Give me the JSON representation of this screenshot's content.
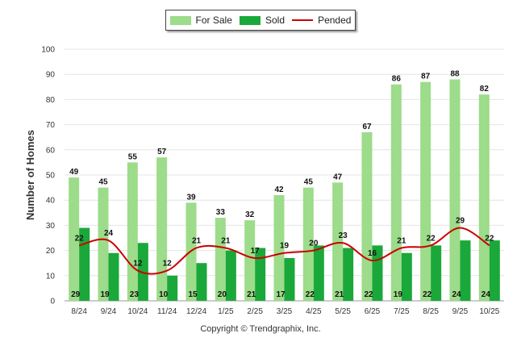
{
  "chart_data": {
    "type": "bar",
    "title": "",
    "xlabel": "",
    "ylabel": "Number of Homes",
    "ylim": [
      0,
      100
    ],
    "yticks": [
      0,
      10,
      20,
      30,
      40,
      50,
      60,
      70,
      80,
      90,
      100
    ],
    "categories": [
      "8/24",
      "9/24",
      "10/24",
      "11/24",
      "12/24",
      "1/25",
      "2/25",
      "3/25",
      "4/25",
      "5/25",
      "6/25",
      "7/25",
      "8/25",
      "9/25",
      "10/25"
    ],
    "series": [
      {
        "name": "For Sale",
        "type": "bar",
        "color": "#9ddc8a",
        "values": [
          49,
          45,
          55,
          57,
          39,
          33,
          32,
          42,
          45,
          47,
          67,
          86,
          87,
          88,
          82
        ]
      },
      {
        "name": "Sold",
        "type": "bar",
        "color": "#1aa83a",
        "values": [
          29,
          19,
          23,
          10,
          15,
          20,
          21,
          17,
          22,
          21,
          22,
          19,
          22,
          24,
          24
        ]
      },
      {
        "name": "Pended",
        "type": "line",
        "color": "#cc0000",
        "values": [
          22,
          24,
          12,
          12,
          21,
          21,
          17,
          19,
          20,
          23,
          16,
          21,
          22,
          29,
          22
        ]
      }
    ],
    "legend": "top-center",
    "grid": true
  },
  "footer": {
    "copyright": "Copyright © Trendgraphix, Inc."
  }
}
